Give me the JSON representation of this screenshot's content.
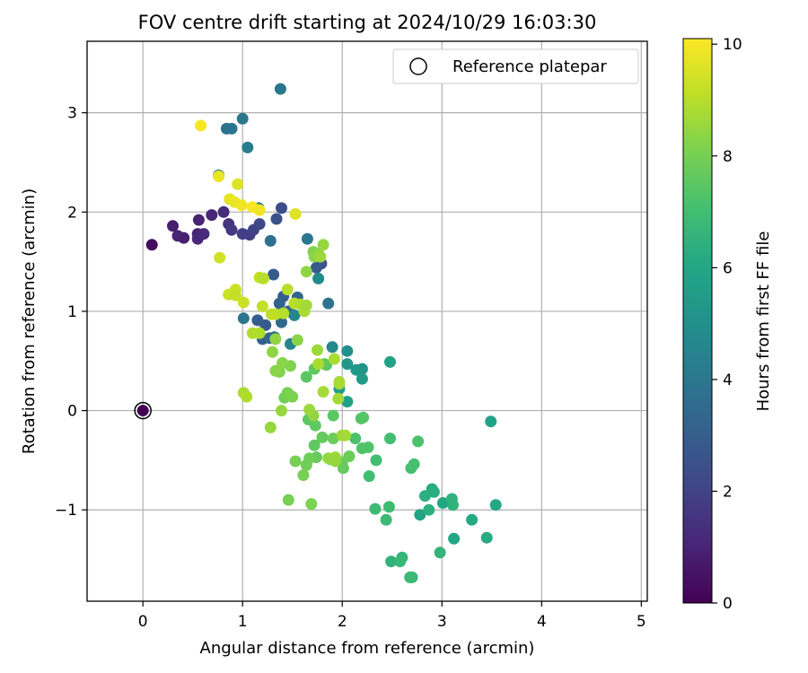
{
  "chart_data": {
    "type": "scatter",
    "title": "FOV centre drift starting at 2024/10/29 16:03:30",
    "xlabel": "Angular distance from reference (arcmin)",
    "ylabel": "Rotation from reference (arcmin)",
    "xlim": [
      -0.56,
      5.06
    ],
    "ylim": [
      -1.92,
      3.72
    ],
    "xticks": [
      0,
      1,
      2,
      3,
      4,
      5
    ],
    "xtick_labels": [
      "0",
      "1",
      "2",
      "3",
      "4",
      "5"
    ],
    "yticks": [
      -1,
      0,
      1,
      2,
      3
    ],
    "ytick_labels": [
      "−1",
      "0",
      "1",
      "2",
      "3"
    ],
    "grid": true,
    "legend": {
      "position": "top-right",
      "entries": [
        "Reference platepar"
      ]
    },
    "colorbar": {
      "label": "Hours from first FF file",
      "range": [
        0,
        10.1
      ],
      "colormap": "viridis",
      "ticks": [
        0,
        2,
        4,
        6,
        8,
        10
      ],
      "tick_labels": [
        "0",
        "2",
        "4",
        "6",
        "8",
        "10"
      ]
    },
    "reference_point": {
      "x": 0,
      "y": 0
    },
    "series": [
      {
        "points": [
          [
            0.09,
            1.67,
            0.3
          ],
          [
            0.3,
            1.86,
            0.8
          ],
          [
            0.35,
            1.76,
            1.0
          ],
          [
            0.41,
            1.74,
            0.9
          ],
          [
            0.55,
            1.78,
            1.0
          ],
          [
            0.55,
            1.73,
            1.1
          ],
          [
            0.56,
            1.92,
            1.0
          ],
          [
            0.61,
            1.78,
            1.2
          ],
          [
            0.69,
            1.97,
            1.1
          ],
          [
            0.81,
            2.0,
            1.3
          ],
          [
            0.86,
            1.88,
            1.5
          ],
          [
            0.89,
            1.82,
            1.7
          ],
          [
            1.0,
            1.78,
            1.9
          ],
          [
            1.07,
            1.77,
            1.8
          ],
          [
            1.11,
            1.82,
            2.0
          ],
          [
            1.17,
            1.88,
            2.2
          ],
          [
            1.39,
            2.04,
            2.4
          ],
          [
            1.34,
            1.93,
            2.5
          ],
          [
            1.79,
            1.48,
            2.6
          ],
          [
            1.74,
            1.44,
            2.8
          ],
          [
            1.31,
            1.37,
            2.9
          ],
          [
            1.41,
            1.15,
            3.0
          ],
          [
            1.37,
            1.08,
            3.2
          ],
          [
            1.46,
            1.0,
            3.1
          ],
          [
            1.15,
            0.91,
            3.0
          ],
          [
            1.23,
            0.86,
            2.9
          ],
          [
            1.2,
            0.72,
            3.1
          ],
          [
            1.27,
            0.73,
            3.3
          ],
          [
            1.32,
            0.74,
            3.5
          ],
          [
            1.39,
            0.89,
            3.4
          ],
          [
            1.55,
            1.14,
            3.3
          ],
          [
            1.86,
            1.08,
            3.8
          ],
          [
            1.01,
            0.93,
            3.9
          ],
          [
            1.28,
            1.71,
            3.7
          ],
          [
            1.65,
            1.73,
            4.0
          ],
          [
            1.38,
            3.24,
            3.9
          ],
          [
            1.0,
            2.94,
            4.0
          ],
          [
            0.84,
            2.84,
            3.8
          ],
          [
            0.89,
            2.84,
            3.9
          ],
          [
            1.05,
            2.65,
            4.2
          ],
          [
            0.76,
            2.37,
            4.1
          ],
          [
            1.16,
            2.04,
            4.3
          ],
          [
            1.48,
            0.67,
            4.5
          ],
          [
            1.52,
            0.96,
            4.6
          ],
          [
            1.9,
            0.64,
            4.7
          ],
          [
            1.76,
            1.33,
            4.8
          ],
          [
            2.05,
            0.6,
            5.0
          ],
          [
            2.05,
            0.47,
            5.3
          ],
          [
            2.2,
            0.42,
            5.2
          ],
          [
            2.14,
            0.41,
            5.4
          ],
          [
            2.2,
            0.32,
            5.5
          ],
          [
            1.97,
            0.22,
            5.6
          ],
          [
            2.05,
            0.09,
            5.7
          ],
          [
            2.48,
            0.49,
            5.8
          ],
          [
            3.49,
            -0.11,
            5.8
          ],
          [
            2.78,
            -1.05,
            5.9
          ],
          [
            3.01,
            -0.93,
            6.0
          ],
          [
            3.12,
            -1.29,
            6.0
          ],
          [
            3.3,
            -1.1,
            6.1
          ],
          [
            3.45,
            -1.28,
            6.2
          ],
          [
            3.54,
            -0.95,
            6.1
          ],
          [
            2.9,
            -0.79,
            6.2
          ],
          [
            2.92,
            -0.82,
            6.3
          ],
          [
            2.83,
            -0.86,
            6.4
          ],
          [
            2.87,
            -1.0,
            6.4
          ],
          [
            3.1,
            -0.89,
            6.5
          ],
          [
            3.11,
            -0.95,
            6.5
          ],
          [
            2.98,
            -1.43,
            6.6
          ],
          [
            2.49,
            -1.52,
            6.5
          ],
          [
            2.6,
            -1.48,
            6.6
          ],
          [
            2.58,
            -1.52,
            6.7
          ],
          [
            2.7,
            -1.68,
            6.7
          ],
          [
            2.68,
            -1.68,
            6.8
          ],
          [
            2.44,
            -1.1,
            6.8
          ],
          [
            2.33,
            -0.99,
            6.9
          ],
          [
            2.47,
            -0.97,
            6.9
          ],
          [
            2.27,
            -0.66,
            7.0
          ],
          [
            2.34,
            -0.5,
            7.0
          ],
          [
            2.48,
            -0.28,
            7.0
          ],
          [
            2.72,
            -0.54,
            7.1
          ],
          [
            2.69,
            -0.58,
            7.1
          ],
          [
            2.76,
            -0.31,
            7.2
          ],
          [
            2.13,
            -0.28,
            7.2
          ],
          [
            2.2,
            -0.38,
            7.3
          ],
          [
            2.26,
            -0.37,
            7.3
          ],
          [
            2.21,
            -0.07,
            7.4
          ],
          [
            2.19,
            -0.08,
            7.4
          ],
          [
            1.91,
            -0.05,
            7.5
          ],
          [
            1.84,
            0.46,
            7.4
          ],
          [
            1.64,
            0.34,
            7.5
          ],
          [
            1.72,
            0.42,
            7.6
          ],
          [
            1.82,
            0.47,
            7.6
          ],
          [
            1.66,
            -0.09,
            7.5
          ],
          [
            1.73,
            -0.15,
            7.6
          ],
          [
            1.8,
            -0.27,
            7.7
          ],
          [
            1.72,
            -0.35,
            7.6
          ],
          [
            1.74,
            -0.47,
            7.7
          ],
          [
            1.88,
            -0.49,
            7.7
          ],
          [
            1.91,
            -0.28,
            7.8
          ],
          [
            2.0,
            -0.52,
            7.8
          ],
          [
            2.01,
            -0.58,
            7.7
          ],
          [
            2.07,
            -0.46,
            7.8
          ],
          [
            1.64,
            -0.55,
            7.9
          ],
          [
            1.67,
            -0.48,
            7.9
          ],
          [
            1.53,
            -0.51,
            8.0
          ],
          [
            1.61,
            -0.65,
            8.0
          ],
          [
            1.46,
            -0.9,
            8.0
          ],
          [
            1.69,
            -0.94,
            8.1
          ],
          [
            1.42,
            0.13,
            7.9
          ],
          [
            1.45,
            0.18,
            8.0
          ],
          [
            1.48,
            0.15,
            8.1
          ],
          [
            1.5,
            0.14,
            8.1
          ],
          [
            1.37,
            0.39,
            8.2
          ],
          [
            1.33,
            0.4,
            8.3
          ],
          [
            1.4,
            0.48,
            8.3
          ],
          [
            1.48,
            0.45,
            8.2
          ],
          [
            1.55,
            0.71,
            8.3
          ],
          [
            1.3,
            0.59,
            8.4
          ],
          [
            1.33,
            0.72,
            8.4
          ],
          [
            1.28,
            -0.17,
            8.5
          ],
          [
            1.39,
            0.0,
            8.5
          ],
          [
            1.71,
            -0.05,
            8.4
          ],
          [
            1.67,
            0.01,
            8.6
          ],
          [
            2.0,
            -0.25,
            8.6
          ],
          [
            2.03,
            -0.25,
            8.7
          ],
          [
            1.93,
            -0.47,
            8.6
          ],
          [
            1.86,
            -0.48,
            8.5
          ],
          [
            1.93,
            -0.51,
            8.5
          ],
          [
            1.96,
            0.12,
            8.7
          ],
          [
            1.97,
            0.27,
            8.7
          ],
          [
            1.97,
            0.29,
            8.8
          ],
          [
            1.81,
            0.19,
            8.7
          ],
          [
            1.75,
            0.61,
            8.6
          ],
          [
            1.76,
            0.47,
            8.8
          ],
          [
            1.92,
            0.52,
            8.8
          ],
          [
            1.01,
            0.18,
            8.8
          ],
          [
            1.04,
            0.14,
            8.9
          ],
          [
            1.1,
            0.78,
            8.9
          ],
          [
            1.17,
            0.78,
            8.9
          ],
          [
            1.45,
            1.22,
            9.0
          ],
          [
            1.52,
            1.08,
            9.0
          ],
          [
            1.58,
            1.07,
            8.9
          ],
          [
            1.62,
            1.0,
            8.8
          ],
          [
            1.64,
            1.06,
            8.7
          ],
          [
            1.29,
            0.97,
            9.1
          ],
          [
            1.33,
            0.97,
            9.1
          ],
          [
            1.2,
            1.05,
            9.2
          ],
          [
            1.41,
            0.98,
            9.0
          ],
          [
            1.17,
            1.34,
            9.2
          ],
          [
            1.21,
            1.33,
            9.0
          ],
          [
            0.86,
            1.17,
            9.3
          ],
          [
            0.93,
            1.22,
            9.3
          ],
          [
            0.93,
            1.16,
            9.2
          ],
          [
            1.01,
            1.09,
            9.3
          ],
          [
            0.77,
            1.54,
            9.4
          ],
          [
            1.64,
            1.4,
            8.4
          ],
          [
            1.71,
            1.6,
            8.2
          ],
          [
            1.72,
            1.55,
            8.3
          ],
          [
            1.81,
            1.67,
            8.5
          ],
          [
            1.76,
            1.58,
            8.4
          ],
          [
            1.78,
            1.55,
            8.6
          ],
          [
            1.53,
            1.98,
            9.6
          ],
          [
            0.87,
            2.13,
            9.7
          ],
          [
            0.92,
            2.1,
            9.8
          ],
          [
            0.99,
            2.07,
            9.9
          ],
          [
            1.1,
            2.05,
            10.0
          ],
          [
            1.17,
            2.02,
            9.9
          ],
          [
            0.76,
            2.36,
            9.8
          ],
          [
            0.95,
            2.28,
            9.6
          ],
          [
            0.58,
            2.87,
            10.0
          ]
        ]
      }
    ]
  }
}
